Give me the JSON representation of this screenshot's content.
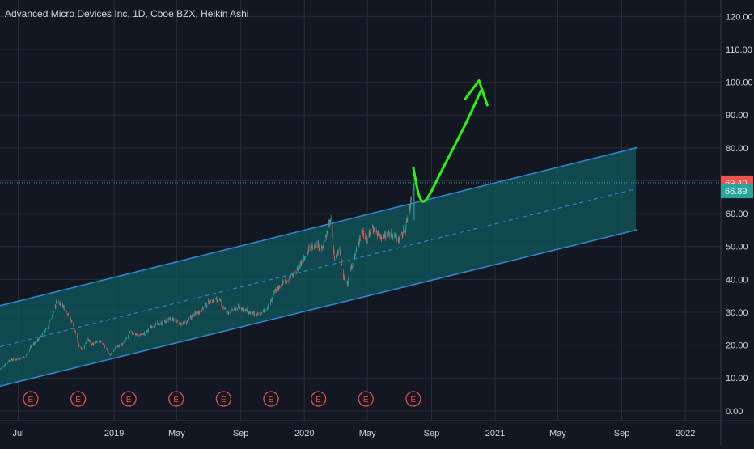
{
  "title": "Advanced Micro Devices Inc, 1D, Cboe BZX, Heikin Ashi",
  "colors": {
    "background": "#131722",
    "grid": "#2a2e39",
    "up": "#26a69a",
    "down": "#ef5350",
    "channel_line": "#2e86c9",
    "channel_fill": "#0f5a5f",
    "arrow": "#2bf30f",
    "last_price_bg": "#ef5350",
    "prev_price_bg": "#26a69a",
    "text": "#d1d4dc"
  },
  "chart_data": {
    "type": "candlestick",
    "style": "Heikin Ashi",
    "symbol": "Advanced Micro Devices Inc",
    "interval": "1D",
    "exchange": "Cboe BZX",
    "ylim": [
      -3,
      125
    ],
    "yticks": [
      0,
      10,
      20,
      30,
      40,
      50,
      60,
      70,
      80,
      90,
      100,
      110,
      120
    ],
    "ytick_labels": [
      "0.00",
      "10.00",
      "20.00",
      "30.00",
      "40.00",
      "50.00",
      "60.00",
      "70.00",
      "80.00",
      "90.00",
      "100.00",
      "110.00",
      "120.00"
    ],
    "xticks": [
      {
        "label": "Jul",
        "date": "2018-07-01"
      },
      {
        "label": "2019",
        "date": "2019-01-01"
      },
      {
        "label": "May",
        "date": "2019-05-01"
      },
      {
        "label": "Sep",
        "date": "2019-09-01"
      },
      {
        "label": "2020",
        "date": "2020-01-01"
      },
      {
        "label": "May",
        "date": "2020-05-01"
      },
      {
        "label": "Sep",
        "date": "2020-09-01"
      },
      {
        "label": "2021",
        "date": "2021-01-01"
      },
      {
        "label": "May",
        "date": "2021-05-01"
      },
      {
        "label": "Sep",
        "date": "2021-09-01"
      },
      {
        "label": "2022",
        "date": "2022-01-01"
      }
    ],
    "xlim": [
      "2018-05-27",
      "2022-03-10"
    ],
    "price_path": [
      [
        "2018-05-28",
        12.8
      ],
      [
        "2018-06-15",
        15.5
      ],
      [
        "2018-07-01",
        15.8
      ],
      [
        "2018-07-15",
        16.5
      ],
      [
        "2018-07-25",
        19.5
      ],
      [
        "2018-08-10",
        22.0
      ],
      [
        "2018-08-25",
        25.0
      ],
      [
        "2018-09-05",
        29.0
      ],
      [
        "2018-09-13",
        33.5
      ],
      [
        "2018-09-25",
        32.0
      ],
      [
        "2018-10-05",
        29.5
      ],
      [
        "2018-10-15",
        26.0
      ],
      [
        "2018-10-25",
        20.0
      ],
      [
        "2018-11-02",
        18.5
      ],
      [
        "2018-11-10",
        22.0
      ],
      [
        "2018-11-20",
        20.0
      ],
      [
        "2018-12-01",
        21.5
      ],
      [
        "2018-12-10",
        20.5
      ],
      [
        "2018-12-24",
        17.0
      ],
      [
        "2019-01-05",
        19.5
      ],
      [
        "2019-01-20",
        20.5
      ],
      [
        "2019-02-01",
        24.0
      ],
      [
        "2019-02-15",
        23.0
      ],
      [
        "2019-03-01",
        23.5
      ],
      [
        "2019-03-15",
        26.0
      ],
      [
        "2019-04-01",
        26.5
      ],
      [
        "2019-04-20",
        28.0
      ],
      [
        "2019-05-01",
        27.5
      ],
      [
        "2019-05-10",
        26.0
      ],
      [
        "2019-05-20",
        27.0
      ],
      [
        "2019-06-01",
        29.0
      ],
      [
        "2019-06-20",
        31.0
      ],
      [
        "2019-07-01",
        33.0
      ],
      [
        "2019-07-15",
        34.0
      ],
      [
        "2019-07-25",
        33.0
      ],
      [
        "2019-08-05",
        30.0
      ],
      [
        "2019-08-20",
        31.0
      ],
      [
        "2019-09-01",
        31.5
      ],
      [
        "2019-09-15",
        30.0
      ],
      [
        "2019-10-01",
        29.0
      ],
      [
        "2019-10-10",
        29.5
      ],
      [
        "2019-10-25",
        32.0
      ],
      [
        "2019-11-05",
        36.0
      ],
      [
        "2019-11-20",
        39.0
      ],
      [
        "2019-12-01",
        40.0
      ],
      [
        "2019-12-15",
        42.0
      ],
      [
        "2020-01-01",
        47.0
      ],
      [
        "2020-01-15",
        50.0
      ],
      [
        "2020-01-25",
        51.0
      ],
      [
        "2020-02-05",
        49.0
      ],
      [
        "2020-02-15",
        55.0
      ],
      [
        "2020-02-21",
        58.5
      ],
      [
        "2020-02-28",
        46.0
      ],
      [
        "2020-03-09",
        49.0
      ],
      [
        "2020-03-16",
        40.5
      ],
      [
        "2020-03-23",
        39.0
      ],
      [
        "2020-04-01",
        44.0
      ],
      [
        "2020-04-10",
        49.0
      ],
      [
        "2020-04-20",
        55.0
      ],
      [
        "2020-05-01",
        52.0
      ],
      [
        "2020-05-10",
        56.0
      ],
      [
        "2020-05-25",
        53.0
      ],
      [
        "2020-06-05",
        53.0
      ],
      [
        "2020-06-15",
        54.0
      ],
      [
        "2020-06-30",
        52.0
      ],
      [
        "2020-07-08",
        54.0
      ],
      [
        "2020-07-15",
        57.0
      ],
      [
        "2020-07-22",
        62.0
      ],
      [
        "2020-07-28",
        69.4
      ]
    ],
    "last_price": {
      "value": 69.4,
      "label": "69.40"
    },
    "prev_price": {
      "value": 66.89,
      "label": "66.89"
    },
    "channel": {
      "upper": [
        [
          "2018-05-27",
          32.0
        ],
        [
          "2021-09-28",
          80.0
        ]
      ],
      "lower": [
        [
          "2018-05-27",
          7.5
        ],
        [
          "2021-09-28",
          55.0
        ]
      ],
      "mid": [
        [
          "2018-05-27",
          19.5
        ],
        [
          "2021-09-28",
          67.5
        ]
      ]
    },
    "arrow_path": [
      [
        "2020-07-28",
        74.0
      ],
      [
        "2020-08-08",
        64.5
      ],
      [
        "2020-08-20",
        63.0
      ],
      [
        "2020-09-20",
        73.0
      ],
      [
        "2020-11-05",
        87.0
      ],
      [
        "2020-12-05",
        97.5
      ]
    ],
    "arrow_head": [
      [
        "2020-11-05",
        95.0
      ],
      [
        "2020-12-01",
        100.5
      ],
      [
        "2020-12-17",
        93.0
      ]
    ],
    "earnings_markers": {
      "label": "E",
      "dates": [
        "2018-07-25",
        "2018-10-24",
        "2019-01-29",
        "2019-04-30",
        "2019-07-30",
        "2019-10-29",
        "2020-01-28",
        "2020-04-28",
        "2020-07-28"
      ]
    }
  }
}
